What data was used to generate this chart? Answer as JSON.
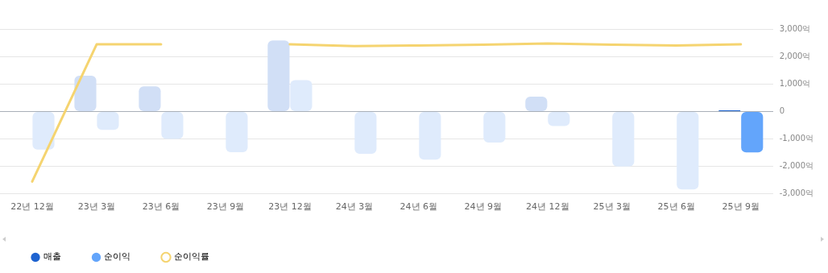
{
  "chart_data": {
    "type": "bar",
    "categories": [
      "22년 12월",
      "23년 3월",
      "23년 6월",
      "23년 9월",
      "23년 12월",
      "24년 3월",
      "24년 6월",
      "24년 9월",
      "24년 12월",
      "25년 3월",
      "25년 6월",
      "25년 9월"
    ],
    "series": [
      {
        "name": "매출",
        "color": "#1e63d0",
        "colors": [
          "#d1dff6",
          "#d1dff6",
          "#d1dff6",
          "#d1dff6",
          "#d1dff6",
          "#d1dff6",
          "#d1dff6",
          "#d1dff6",
          "#d1dff6",
          "#d1dff6",
          "#d1dff6",
          "#1e63d0"
        ],
        "values": [
          0,
          1300,
          910,
          0,
          2580,
          0,
          0,
          0,
          540,
          0,
          0,
          40
        ]
      },
      {
        "name": "순이익",
        "color": "#63a5fb",
        "colors": [
          "#dfebfc",
          "#dfebfc",
          "#dfebfc",
          "#dfebfc",
          "#dfebfc",
          "#dfebfc",
          "#dfebfc",
          "#dfebfc",
          "#dfebfc",
          "#dfebfc",
          "#dfebfc",
          "#63a5fb"
        ],
        "values": [
          -1390,
          -670,
          -1000,
          -1480,
          1140,
          -1540,
          -1750,
          -1130,
          -530,
          -2000,
          -2840,
          -1490
        ]
      },
      {
        "name": "순이익률",
        "type": "line",
        "color": "#f5d470",
        "values": [
          -2550,
          2440,
          2440,
          null,
          2440,
          2380,
          2400,
          2430,
          2470,
          2430,
          2400,
          2440
        ]
      }
    ],
    "ylim": [
      -3000,
      3000
    ],
    "yticks": [
      {
        "value": -3000,
        "label": "-3,000억"
      },
      {
        "value": -2000,
        "label": "-2,000억"
      },
      {
        "value": -1000,
        "label": "-1,000억"
      },
      0,
      {
        "value": 1000,
        "label": "1,000억"
      },
      {
        "value": 2000,
        "label": "2,000억"
      },
      {
        "value": 3000,
        "label": "3,000억"
      }
    ],
    "grid": "y",
    "legend": "bottom left"
  }
}
